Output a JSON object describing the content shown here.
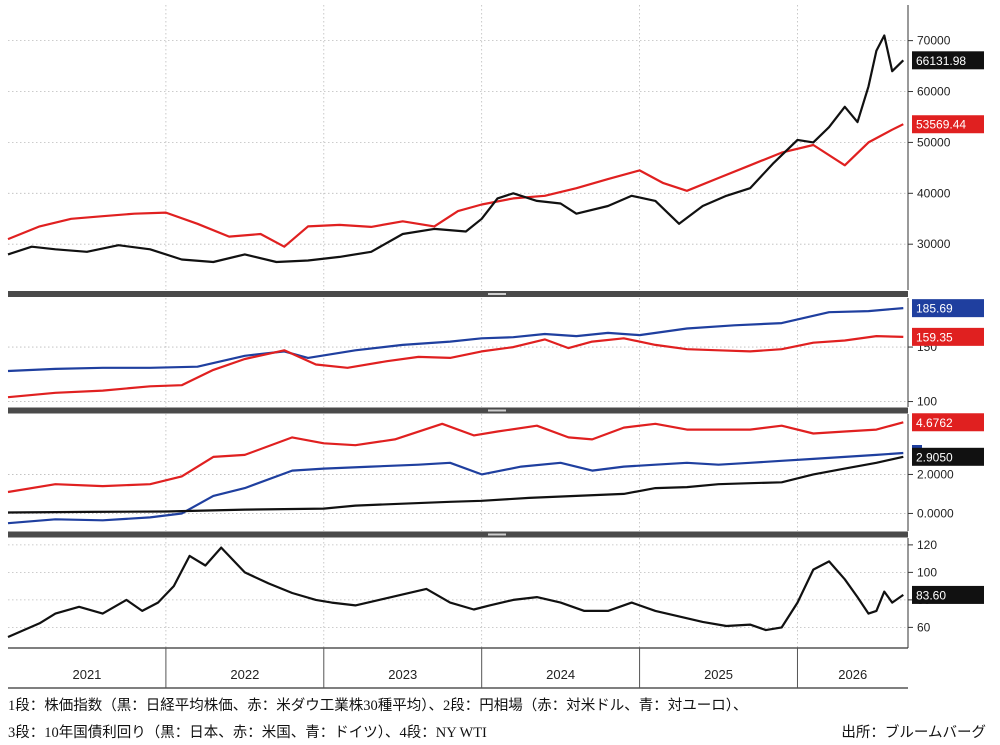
{
  "caption": {
    "line1": "1段：株価指数（黒：日経平均株価、赤：米ダウ工業株30種平均）、2段：円相場（赤：対米ドル、青：対ユーロ）、",
    "line2": "3段：10年国債利回り（黒：日本、赤：米国、青：ドイツ）、4段：NY WTI",
    "source": "出所：ブルームバーグ"
  },
  "colors": {
    "black": "#111111",
    "red": "#e02020",
    "blue": "#1f3f9f",
    "grid": "#bbbbbb",
    "frame": "#666666"
  },
  "chart_data": [
    {
      "type": "line",
      "ylim": [
        21000,
        77000
      ],
      "ticks": [
        30000,
        40000,
        50000,
        60000,
        70000
      ],
      "tick_labels": [
        "30000",
        "40000",
        "50000",
        "60000",
        "70000"
      ],
      "x_years": [
        "2021",
        "2022",
        "2023",
        "2024",
        "2025",
        "2026"
      ],
      "x_start": 2021.0,
      "x_end": 2026.7,
      "series": [
        {
          "color": "red",
          "last_value_label": "53569.44",
          "x": [
            2021.0,
            2021.2,
            2021.4,
            2021.6,
            2021.8,
            2022.0,
            2022.2,
            2022.4,
            2022.6,
            2022.75,
            2022.9,
            2023.1,
            2023.3,
            2023.5,
            2023.7,
            2023.85,
            2024.0,
            2024.2,
            2024.4,
            2024.6,
            2024.8,
            2025.0,
            2025.15,
            2025.3,
            2025.5,
            2025.7,
            2025.9,
            2026.1,
            2026.3,
            2026.45,
            2026.6,
            2026.67
          ],
          "y": [
            31000,
            33500,
            35000,
            35500,
            36000,
            36200,
            34000,
            31500,
            32000,
            29500,
            33500,
            33800,
            33400,
            34500,
            33500,
            36500,
            37800,
            39000,
            39500,
            41000,
            42800,
            44500,
            42000,
            40500,
            43000,
            45500,
            48000,
            49500,
            45500,
            50000,
            52500,
            53569
          ]
        },
        {
          "color": "black",
          "last_value_label": "66131.98",
          "x": [
            2021.0,
            2021.15,
            2021.3,
            2021.5,
            2021.7,
            2021.9,
            2022.1,
            2022.3,
            2022.5,
            2022.7,
            2022.9,
            2023.1,
            2023.3,
            2023.5,
            2023.7,
            2023.9,
            2024.0,
            2024.1,
            2024.2,
            2024.35,
            2024.5,
            2024.6,
            2024.8,
            2024.95,
            2025.1,
            2025.25,
            2025.4,
            2025.55,
            2025.7,
            2025.85,
            2026.0,
            2026.1,
            2026.2,
            2026.3,
            2026.38,
            2026.45,
            2026.5,
            2026.55,
            2026.6,
            2026.67
          ],
          "y": [
            28000,
            29500,
            29000,
            28500,
            29800,
            29000,
            27000,
            26500,
            28000,
            26500,
            26800,
            27500,
            28500,
            32000,
            33000,
            32500,
            35000,
            39000,
            40000,
            38500,
            38000,
            36000,
            37500,
            39500,
            38500,
            34000,
            37500,
            39500,
            41000,
            46000,
            50500,
            50000,
            53000,
            57000,
            54000,
            61000,
            68000,
            71000,
            64000,
            66132
          ]
        }
      ]
    },
    {
      "type": "line",
      "ylim": [
        95,
        195
      ],
      "ticks": [
        100,
        150
      ],
      "tick_labels": [
        "100",
        "150"
      ],
      "series": [
        {
          "color": "blue",
          "last_value_label": "185.69",
          "x": [
            2021.0,
            2021.3,
            2021.6,
            2021.9,
            2022.2,
            2022.5,
            2022.75,
            2022.9,
            2023.2,
            2023.5,
            2023.8,
            2024.0,
            2024.2,
            2024.4,
            2024.6,
            2024.8,
            2025.0,
            2025.3,
            2025.6,
            2025.9,
            2026.2,
            2026.45,
            2026.67
          ],
          "y": [
            128,
            130,
            131,
            131,
            132,
            142,
            146,
            140,
            147,
            152,
            155,
            158,
            159,
            162,
            160,
            163,
            161,
            167,
            170,
            172,
            182,
            183,
            185.69
          ]
        },
        {
          "color": "red",
          "last_value_label": "159.35",
          "x": [
            2021.0,
            2021.3,
            2021.6,
            2021.9,
            2022.1,
            2022.3,
            2022.5,
            2022.75,
            2022.95,
            2023.15,
            2023.4,
            2023.6,
            2023.8,
            2024.0,
            2024.2,
            2024.4,
            2024.55,
            2024.7,
            2024.9,
            2025.1,
            2025.3,
            2025.5,
            2025.7,
            2025.9,
            2026.1,
            2026.3,
            2026.5,
            2026.67
          ],
          "y": [
            104,
            108,
            110,
            114,
            115,
            129,
            139,
            147,
            134,
            131,
            137,
            141,
            140,
            146,
            150,
            157,
            149,
            155,
            158,
            152,
            148,
            147,
            146,
            148,
            154,
            156,
            160,
            159.35
          ]
        }
      ]
    },
    {
      "type": "line",
      "ylim": [
        -0.9,
        5.1
      ],
      "ticks": [
        0,
        2
      ],
      "tick_labels": [
        "0.0000",
        "2.0000"
      ],
      "series": [
        {
          "color": "red",
          "last_value_label": "4.6762",
          "x": [
            2021.0,
            2021.3,
            2021.6,
            2021.9,
            2022.1,
            2022.3,
            2022.5,
            2022.8,
            2023.0,
            2023.2,
            2023.45,
            2023.75,
            2023.95,
            2024.1,
            2024.35,
            2024.55,
            2024.7,
            2024.9,
            2025.1,
            2025.3,
            2025.5,
            2025.7,
            2025.9,
            2026.1,
            2026.3,
            2026.5,
            2026.67
          ],
          "y": [
            1.1,
            1.5,
            1.4,
            1.5,
            1.9,
            2.9,
            3.0,
            3.9,
            3.6,
            3.5,
            3.8,
            4.6,
            4.0,
            4.2,
            4.5,
            3.9,
            3.8,
            4.4,
            4.6,
            4.3,
            4.3,
            4.3,
            4.5,
            4.1,
            4.2,
            4.3,
            4.6762
          ]
        },
        {
          "color": "blue",
          "last_value_label": "",
          "x": [
            2021.0,
            2021.3,
            2021.6,
            2021.9,
            2022.1,
            2022.3,
            2022.5,
            2022.8,
            2023.0,
            2023.3,
            2023.6,
            2023.8,
            2024.0,
            2024.25,
            2024.5,
            2024.7,
            2024.9,
            2025.1,
            2025.3,
            2025.5,
            2025.7,
            2025.9,
            2026.1,
            2026.3,
            2026.5,
            2026.67
          ],
          "y": [
            -0.5,
            -0.3,
            -0.35,
            -0.2,
            0.0,
            0.9,
            1.3,
            2.2,
            2.3,
            2.4,
            2.5,
            2.6,
            2.0,
            2.4,
            2.6,
            2.2,
            2.4,
            2.5,
            2.6,
            2.5,
            2.6,
            2.7,
            2.8,
            2.9,
            3.0,
            3.1
          ]
        },
        {
          "color": "black",
          "last_value_label": "2.9050",
          "x": [
            2021.0,
            2021.5,
            2022.0,
            2022.5,
            2023.0,
            2023.2,
            2023.5,
            2023.8,
            2024.0,
            2024.3,
            2024.6,
            2024.9,
            2025.1,
            2025.3,
            2025.5,
            2025.7,
            2025.9,
            2026.1,
            2026.3,
            2026.5,
            2026.67
          ],
          "y": [
            0.05,
            0.08,
            0.1,
            0.2,
            0.25,
            0.4,
            0.5,
            0.6,
            0.65,
            0.8,
            0.9,
            1.0,
            1.3,
            1.35,
            1.5,
            1.55,
            1.6,
            2.0,
            2.3,
            2.6,
            2.905
          ]
        }
      ]
    },
    {
      "type": "line",
      "ylim": [
        45,
        125
      ],
      "ticks": [
        60,
        80,
        100,
        120
      ],
      "tick_labels": [
        "60",
        "80",
        "100",
        "120"
      ],
      "series": [
        {
          "color": "black",
          "last_value_label": "83.60",
          "x": [
            2021.0,
            2021.1,
            2021.2,
            2021.3,
            2021.45,
            2021.6,
            2021.75,
            2021.85,
            2021.95,
            2022.05,
            2022.15,
            2022.25,
            2022.35,
            2022.5,
            2022.65,
            2022.8,
            2022.95,
            2023.05,
            2023.2,
            2023.35,
            2023.5,
            2023.65,
            2023.8,
            2023.95,
            2024.05,
            2024.2,
            2024.35,
            2024.5,
            2024.65,
            2024.8,
            2024.95,
            2025.1,
            2025.25,
            2025.4,
            2025.55,
            2025.7,
            2025.8,
            2025.9,
            2026.0,
            2026.1,
            2026.2,
            2026.3,
            2026.38,
            2026.45,
            2026.5,
            2026.55,
            2026.6,
            2026.67
          ],
          "y": [
            53,
            58,
            63,
            70,
            75,
            70,
            80,
            72,
            78,
            90,
            112,
            105,
            118,
            100,
            92,
            85,
            80,
            78,
            76,
            80,
            84,
            88,
            78,
            73,
            76,
            80,
            82,
            78,
            72,
            72,
            78,
            72,
            68,
            64,
            61,
            62,
            58,
            60,
            78,
            102,
            108,
            95,
            82,
            70,
            72,
            86,
            78,
            83.6
          ]
        }
      ]
    }
  ]
}
